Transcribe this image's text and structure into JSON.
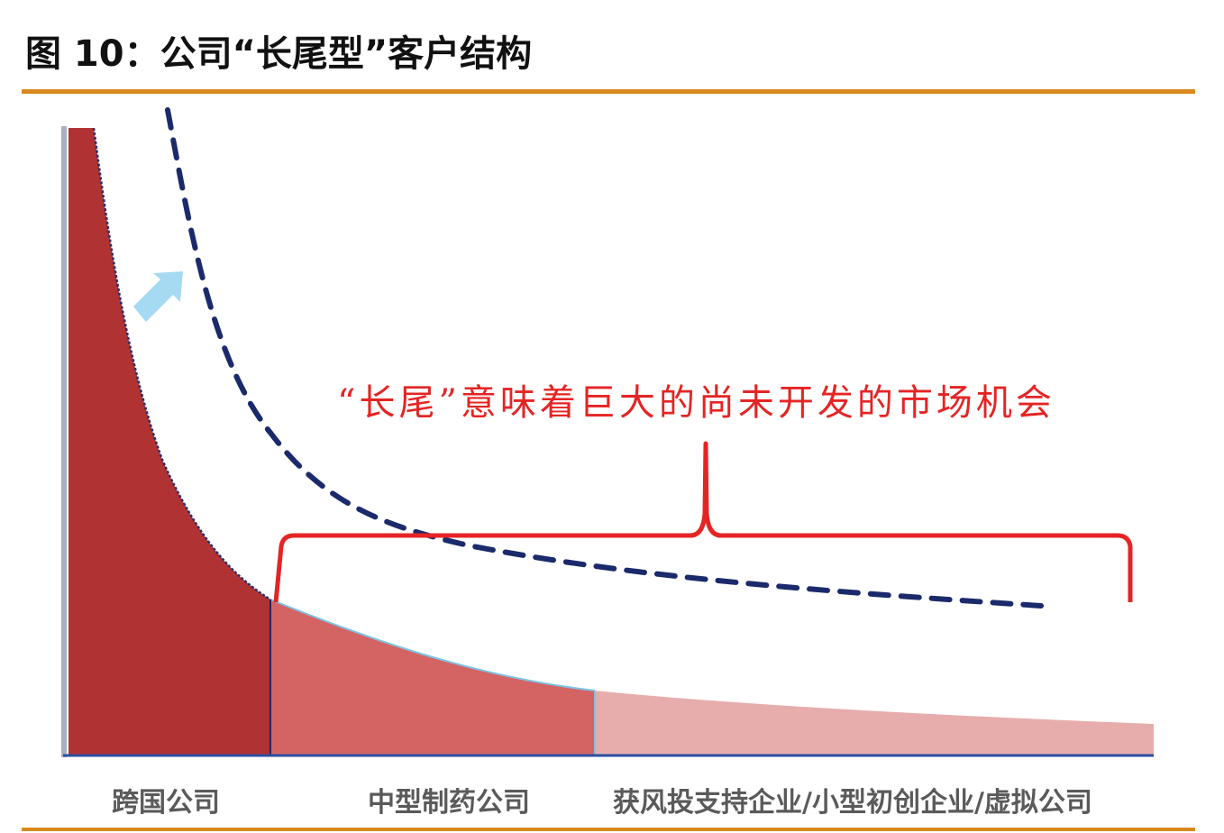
{
  "title": "图 10：公司“长尾型”客户结构",
  "annotation": "“长尾”意味着巨大的尚未开发的市场机会",
  "segments": [
    {
      "label": "跨国公司",
      "color": "#b03232"
    },
    {
      "label": "中型制药公司",
      "color": "#d46464"
    },
    {
      "label": "获风投支持企业/小型初创企业/虚拟公司",
      "color": "#e7adad"
    }
  ],
  "colors": {
    "accent_rule": "#d98a1f",
    "dashed_curve": "#1b2a6b",
    "bracket": "#e52424",
    "arrow": "#a6daf2",
    "axis": "#a9b0c0"
  },
  "icons": {
    "growth_arrow": "arrow-up-right-icon"
  }
}
